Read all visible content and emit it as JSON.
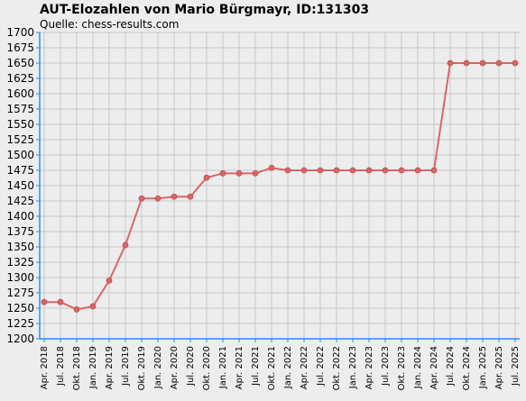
{
  "chart_data": {
    "type": "line",
    "title": "AUT-Elozahlen von Mario Bürgmayr, ID:131303",
    "subtitle": "Quelle: chess-results.com",
    "xlabel": "",
    "ylabel": "",
    "ylim": [
      1200,
      1700
    ],
    "ytick_step": 25,
    "grid": true,
    "categories": [
      "Apr. 2018",
      "Jul. 2018",
      "Okt. 2018",
      "Jan. 2019",
      "Apr. 2019",
      "Jul. 2019",
      "Okt. 2019",
      "Jan. 2020",
      "Apr. 2020",
      "Jul. 2020",
      "Okt. 2020",
      "Jan. 2021",
      "Apr. 2021",
      "Jul. 2021",
      "Okt. 2021",
      "Jan. 2022",
      "Apr. 2022",
      "Jul. 2022",
      "Okt. 2022",
      "Jan. 2023",
      "Apr. 2023",
      "Jul. 2023",
      "Okt. 2023",
      "Jan. 2024",
      "Apr. 2024",
      "Jul. 2024",
      "Okt. 2024",
      "Jan. 2025",
      "Apr. 2025",
      "Jul. 2025"
    ],
    "values": [
      1260,
      1260,
      1248,
      1253,
      1295,
      1353,
      1429,
      1429,
      1432,
      1432,
      1463,
      1470,
      1470,
      1470,
      1479,
      1475,
      1475,
      1475,
      1475,
      1475,
      1475,
      1475,
      1475,
      1475,
      1475,
      1650,
      1650,
      1650,
      1650,
      1650
    ],
    "line_color": "#d96666",
    "axis_color": "#1e90ff",
    "grid_color": "#c8c8c8"
  }
}
